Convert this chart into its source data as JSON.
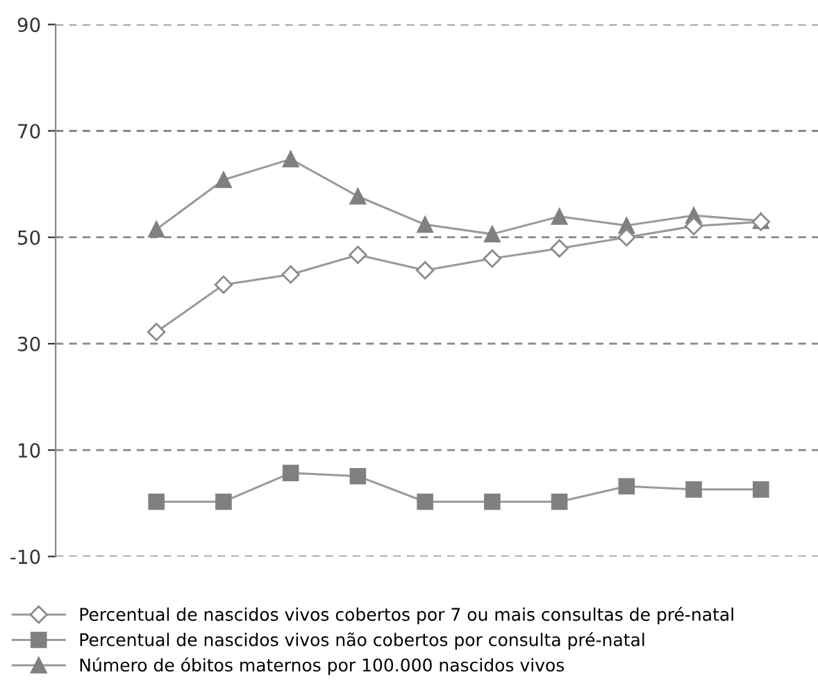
{
  "chart_data": {
    "type": "line",
    "categories": [
      null,
      null,
      null,
      null,
      null,
      null,
      null,
      null,
      null,
      null
    ],
    "series": [
      {
        "name": "Percentual de nascidos vivos cobertos por 7 ou mais consultas de pré-natal",
        "color": "#8a8a8a",
        "marker": "diamond",
        "values": [
          32.2,
          41.1,
          43.0,
          46.7,
          43.8,
          46.0,
          47.9,
          50.0,
          52.1,
          52.9
        ]
      },
      {
        "name": "Percentual de nascidos vivos não cobertos por consulta pré-natal",
        "color": "#808080",
        "marker": "square",
        "values": [
          0.3,
          0.3,
          5.7,
          5.1,
          0.3,
          0.3,
          0.3,
          3.2,
          2.6,
          2.6
        ]
      },
      {
        "name": "Número de óbitos maternos por 100.000 nascidos vivos",
        "color": "#808080",
        "marker": "triangle",
        "values": [
          51.5,
          60.8,
          64.7,
          57.7,
          52.4,
          50.6,
          53.9,
          52.2,
          54.1,
          53.1
        ]
      }
    ],
    "ylim": [
      -10,
      90
    ],
    "yticks": [
      -10,
      10,
      30,
      50,
      70,
      90
    ],
    "grid": "y",
    "legend": "bottom",
    "tick_labels": "y",
    "line_style": "solid"
  }
}
